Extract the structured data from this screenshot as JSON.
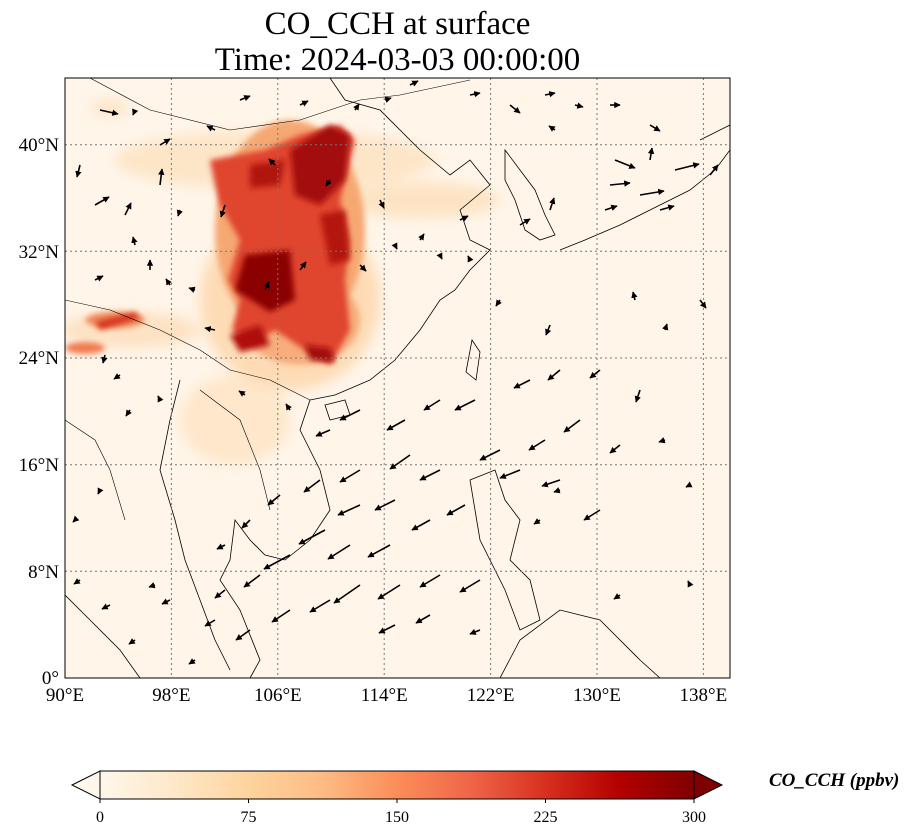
{
  "title": {
    "line1": "CO_CCH at surface",
    "line2": "Time: 2024-03-03 00:00:00"
  },
  "map": {
    "region": "East and Southeast Asia",
    "lon_range": [
      90,
      140
    ],
    "lat_range": [
      0,
      45
    ],
    "lon_ticks": [
      "90°E",
      "98°E",
      "106°E",
      "114°E",
      "122°E",
      "130°E",
      "138°E"
    ],
    "lat_ticks": [
      "0°",
      "8°N",
      "16°N",
      "24°N",
      "32°N",
      "40°N"
    ],
    "gridlines": true,
    "overlay": "wind vectors",
    "hotspot_region": "central and northern China"
  },
  "colorbar": {
    "label": "CO_CCH (ppbv)",
    "colormap": "OrRd",
    "ticks": [
      "0",
      "75",
      "150",
      "225",
      "300"
    ],
    "range": [
      0,
      300
    ],
    "extend": "both",
    "colors": [
      "#fff7ec",
      "#fee8c8",
      "#fdd49e",
      "#fdbb84",
      "#fc8d59",
      "#ef6548",
      "#d7301f",
      "#b30000",
      "#7f0000"
    ]
  }
}
